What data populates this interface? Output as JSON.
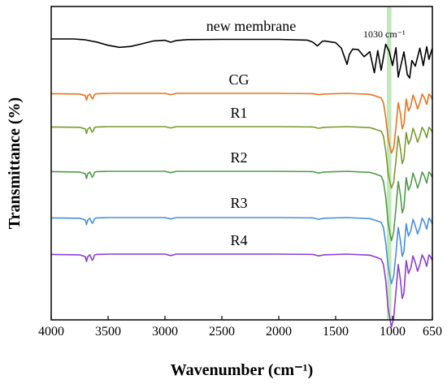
{
  "chart_data": {
    "type": "line",
    "xlabel": "Wavenumber (cm⁻¹)",
    "ylabel": "Transmittance (%)",
    "x_reversed": true,
    "xlim": [
      4000,
      650
    ],
    "x_ticks": [
      "4000",
      "3500",
      "3000",
      "2500",
      "2000",
      "1500",
      "1000",
      "650"
    ],
    "x_tick_values": [
      4000,
      3500,
      3000,
      2500,
      2000,
      1500,
      1000,
      650
    ],
    "y_ticks_shown": false,
    "annotations": [
      {
        "text": "1030 cm⁻¹",
        "x": 1030,
        "highlight_band": [
          1050,
          1010
        ],
        "color": "#b9e5b0"
      }
    ],
    "series": [
      {
        "name": "new membrane",
        "color": "#000000",
        "x": [
          4000,
          3800,
          3700,
          3600,
          3500,
          3400,
          3300,
          3200,
          3100,
          3000,
          2950,
          2900,
          2800,
          2500,
          2000,
          1750,
          1700,
          1660,
          1620,
          1600,
          1500,
          1450,
          1400,
          1380,
          1350,
          1300,
          1250,
          1200,
          1160,
          1130,
          1100,
          1060,
          1030,
          1000,
          970,
          950,
          900,
          870,
          850,
          830,
          800,
          760,
          730,
          700,
          680,
          650
        ],
        "y": [
          98,
          98,
          97.6,
          96.6,
          95.1,
          94.2,
          94.6,
          95.8,
          97.1,
          97.4,
          96.5,
          97.3,
          97.7,
          97.8,
          97.8,
          97.5,
          96.5,
          94.8,
          96.8,
          97.1,
          96.3,
          93.8,
          86.4,
          90.9,
          93.4,
          93.1,
          89.9,
          92.2,
          82.6,
          92.7,
          83.7,
          95.6,
          92.4,
          85.9,
          94.0,
          80.6,
          92.1,
          81.7,
          80.2,
          88.2,
          85.6,
          93.8,
          85.8,
          94.5,
          88.7,
          93.9
        ]
      },
      {
        "name": "CG",
        "color": "#e8731c",
        "x": [
          4000,
          3750,
          3700,
          3690,
          3680,
          3660,
          3640,
          3630,
          3620,
          3600,
          3500,
          3000,
          2950,
          2900,
          2500,
          2000,
          1700,
          1650,
          1600,
          1400,
          1200,
          1150,
          1100,
          1080,
          1060,
          1040,
          1030,
          1010,
          990,
          970,
          950,
          930,
          915,
          900,
          880,
          860,
          840,
          820,
          800,
          780,
          760,
          740,
          720,
          700,
          680,
          665,
          650
        ],
        "y": [
          97.3,
          97.2,
          96.7,
          95.3,
          96.6,
          97.2,
          95.7,
          96.1,
          97.1,
          97.3,
          97.4,
          97.4,
          97.0,
          97.4,
          97.4,
          97.4,
          97.3,
          97.0,
          97.2,
          97.4,
          97.1,
          96.6,
          96.0,
          94.5,
          90.0,
          84.0,
          82.0,
          79.0,
          80.6,
          87.0,
          94.5,
          91.0,
          86.5,
          88.0,
          95.6,
          92.0,
          93.5,
          96.9,
          95.0,
          92.6,
          94.5,
          97.2,
          96.0,
          94.0,
          97.2,
          96.6,
          95.6
        ]
      },
      {
        "name": "R1",
        "color": "#7a9a2e",
        "x": [
          4000,
          3750,
          3700,
          3690,
          3680,
          3660,
          3640,
          3630,
          3620,
          3600,
          3500,
          3000,
          2950,
          2900,
          2500,
          2000,
          1700,
          1650,
          1600,
          1400,
          1200,
          1150,
          1100,
          1080,
          1060,
          1040,
          1030,
          1010,
          990,
          970,
          950,
          930,
          915,
          900,
          880,
          860,
          840,
          820,
          800,
          780,
          760,
          740,
          720,
          700,
          680,
          665,
          650
        ],
        "y": [
          97.3,
          97.2,
          96.7,
          95.3,
          96.6,
          97.2,
          95.7,
          96.1,
          97.1,
          97.3,
          97.4,
          97.4,
          97.0,
          97.4,
          97.4,
          97.4,
          97.3,
          96.9,
          97.2,
          97.4,
          97.1,
          96.6,
          96.0,
          94.5,
          90.0,
          83.5,
          81.5,
          78.5,
          80.3,
          87.0,
          94.5,
          90.5,
          86.0,
          87.5,
          95.6,
          92.0,
          93.5,
          96.9,
          95.0,
          92.6,
          94.5,
          97.2,
          96.0,
          94.0,
          97.2,
          96.6,
          95.6
        ]
      },
      {
        "name": "R2",
        "color": "#4f9a49",
        "x": [
          4000,
          3750,
          3700,
          3690,
          3680,
          3660,
          3640,
          3630,
          3620,
          3600,
          3500,
          3000,
          2950,
          2900,
          2500,
          2000,
          1700,
          1650,
          1600,
          1400,
          1200,
          1150,
          1100,
          1080,
          1060,
          1040,
          1030,
          1010,
          990,
          970,
          950,
          930,
          915,
          900,
          880,
          860,
          840,
          820,
          800,
          780,
          760,
          740,
          720,
          700,
          680,
          665,
          650
        ],
        "y": [
          97.3,
          97.2,
          96.7,
          95.3,
          96.6,
          97.2,
          95.7,
          96.1,
          97.1,
          97.3,
          97.4,
          97.4,
          97.0,
          97.4,
          97.4,
          97.4,
          97.3,
          96.9,
          97.2,
          97.4,
          97.1,
          96.6,
          96.0,
          94.5,
          90.0,
          83.0,
          81.0,
          77.5,
          80.0,
          87.0,
          94.5,
          90.5,
          85.5,
          87.0,
          95.6,
          92.0,
          93.5,
          96.9,
          95.0,
          92.6,
          94.5,
          97.2,
          96.0,
          94.0,
          97.2,
          96.6,
          95.6
        ]
      },
      {
        "name": "R3",
        "color": "#4a8fdb",
        "x": [
          4000,
          3750,
          3700,
          3690,
          3680,
          3660,
          3640,
          3630,
          3620,
          3600,
          3500,
          3000,
          2950,
          2900,
          2500,
          2000,
          1700,
          1650,
          1600,
          1400,
          1200,
          1150,
          1100,
          1080,
          1060,
          1040,
          1030,
          1010,
          990,
          970,
          950,
          930,
          915,
          900,
          880,
          860,
          840,
          820,
          800,
          780,
          760,
          740,
          720,
          700,
          680,
          665,
          650
        ],
        "y": [
          97.3,
          97.2,
          96.7,
          95.3,
          96.6,
          97.2,
          95.7,
          96.1,
          97.1,
          97.3,
          97.4,
          97.4,
          97.0,
          97.4,
          97.4,
          97.4,
          97.3,
          96.9,
          97.2,
          97.4,
          97.1,
          96.6,
          96.0,
          94.5,
          90.0,
          83.5,
          81.5,
          78.0,
          80.3,
          87.0,
          94.5,
          90.5,
          86.0,
          87.5,
          95.6,
          92.0,
          93.5,
          96.9,
          95.0,
          92.6,
          94.5,
          97.2,
          96.0,
          94.0,
          97.2,
          96.6,
          95.6
        ]
      },
      {
        "name": "R4",
        "color": "#8a3fd1",
        "x": [
          4000,
          3750,
          3700,
          3690,
          3680,
          3660,
          3640,
          3630,
          3620,
          3600,
          3500,
          3000,
          2950,
          2900,
          2500,
          2000,
          1700,
          1650,
          1600,
          1400,
          1200,
          1150,
          1100,
          1080,
          1060,
          1040,
          1030,
          1010,
          990,
          970,
          950,
          930,
          915,
          900,
          880,
          860,
          840,
          820,
          800,
          780,
          760,
          740,
          720,
          700,
          680,
          665,
          650
        ],
        "y": [
          97.3,
          97.2,
          96.7,
          95.3,
          96.6,
          97.2,
          95.7,
          96.1,
          97.1,
          97.3,
          97.4,
          97.4,
          97.0,
          97.4,
          97.4,
          97.4,
          97.3,
          96.9,
          97.2,
          97.4,
          97.1,
          96.6,
          96.0,
          94.5,
          90.0,
          82.5,
          80.5,
          77.0,
          79.5,
          87.0,
          94.5,
          90.0,
          85.0,
          86.5,
          95.6,
          92.0,
          93.5,
          96.9,
          95.0,
          92.6,
          94.5,
          97.2,
          96.0,
          94.0,
          97.2,
          96.6,
          95.6
        ]
      }
    ]
  }
}
